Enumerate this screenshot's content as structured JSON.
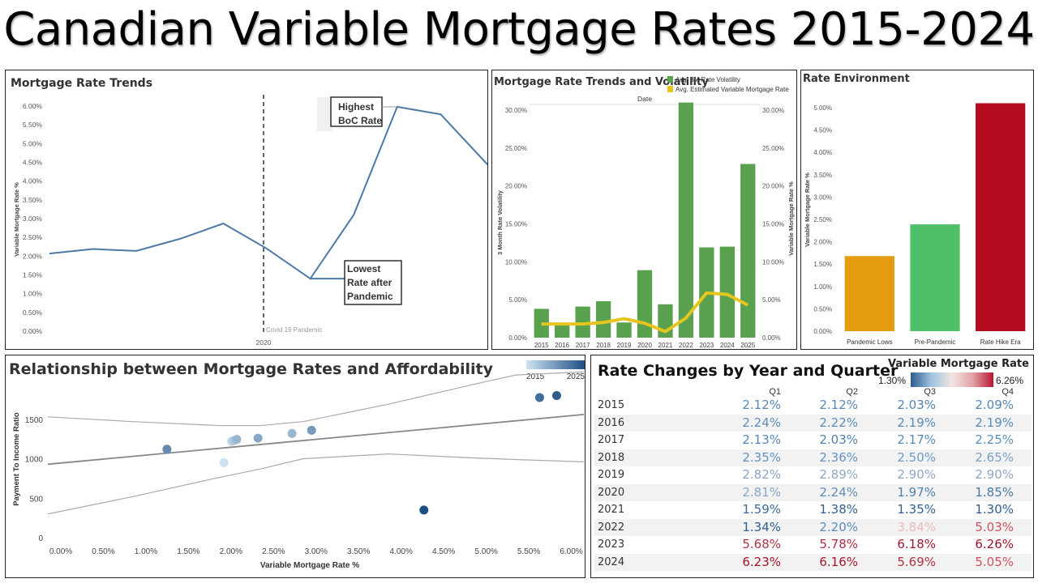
{
  "page_title": "Canadian Variable Mortgage Rates 2015-2024",
  "chart_data": [
    {
      "id": "trends",
      "type": "line",
      "title": "Mortgage Rate Trends",
      "ylabel": "Variable Mortgage Rate %",
      "xtick": "2020",
      "ylim": [
        0,
        6
      ],
      "yticks": [
        "0.00%",
        "0.50%",
        "1.00%",
        "1.50%",
        "2.00%",
        "2.50%",
        "3.00%",
        "3.50%",
        "4.00%",
        "4.50%",
        "5.00%",
        "5.50%",
        "6.00%"
      ],
      "y": [
        2.07,
        2.19,
        2.14,
        2.46,
        2.87,
        2.2,
        1.4,
        3.1,
        5.98,
        5.78,
        4.4
      ],
      "annotations": {
        "covid": "Covid 19 Pandemic",
        "highest": [
          "Highest",
          "BoC Rate"
        ],
        "lowest": [
          "Lowest",
          "Rate after",
          "Pandemic"
        ]
      },
      "line_color": "#4e79a7"
    },
    {
      "id": "volatility",
      "type": "bar",
      "title": "Mortgage Rate Trends and Volatility",
      "xlabel": "Date",
      "ylabel_left": "3 Month Rate Volatility",
      "ylabel_right": "Variable Mortgage Rate %",
      "ylim": [
        0,
        30
      ],
      "yticks": [
        "0.00%",
        "5.00%",
        "10.00%",
        "15.00%",
        "20.00%",
        "25.00%",
        "30.00%"
      ],
      "categories": [
        "2015",
        "2016",
        "2017",
        "2018",
        "2019",
        "2020",
        "2021",
        "2022",
        "2023",
        "2024",
        "2025"
      ],
      "series": [
        {
          "name": "Avg. 3M Rate Volatility",
          "color": "#59a14f",
          "values": [
            3.8,
            1.8,
            4.1,
            4.8,
            2.0,
            8.9,
            4.4,
            31.0,
            11.9,
            12.0,
            22.9
          ]
        },
        {
          "name": "Avg. Estimated Variable Mortgage Rate",
          "color": "#e6c51f",
          "values": [
            1.8,
            1.8,
            1.8,
            2.0,
            2.5,
            1.9,
            0.8,
            2.6,
            5.9,
            5.7,
            4.3
          ]
        }
      ]
    },
    {
      "id": "environment",
      "type": "bar",
      "title": "Rate Environment",
      "ylabel": "Variable Mortgage Rate %",
      "ylim": [
        0,
        5
      ],
      "yticks": [
        "0.00%",
        "0.50%",
        "1.00%",
        "1.50%",
        "2.00%",
        "2.50%",
        "3.00%",
        "3.50%",
        "4.00%",
        "4.50%",
        "5.00%"
      ],
      "categories": [
        "Pandemic Lows",
        "Pre-Pandemic",
        "Rate Hike Era"
      ],
      "values": [
        1.68,
        2.39,
        5.1
      ],
      "colors": [
        "#e49b0f",
        "#4fbf6a",
        "#b30b1f"
      ]
    },
    {
      "id": "affordability",
      "type": "scatter",
      "title": "Relationship between Mortgage Rates and Affordability",
      "xlabel": "Variable Mortgage Rate %",
      "ylabel": "Payment To Income Ratio",
      "legend_range": [
        "2015",
        "2025"
      ],
      "xlim": [
        0,
        6.3
      ],
      "ylim": [
        0,
        2000
      ],
      "xticks": [
        "0.00%",
        "0.50%",
        "1.00%",
        "1.50%",
        "2.00%",
        "2.50%",
        "3.00%",
        "3.50%",
        "4.00%",
        "4.50%",
        "5.00%",
        "5.50%",
        "6.00%"
      ],
      "yticks": [
        "0",
        "500",
        "1000",
        "1500"
      ],
      "points": [
        {
          "x": 2.07,
          "y": 950,
          "year": 2015
        },
        {
          "x": 2.16,
          "y": 1220,
          "year": 2016
        },
        {
          "x": 2.19,
          "y": 1230,
          "year": 2017
        },
        {
          "x": 2.22,
          "y": 1245,
          "year": 2018
        },
        {
          "x": 2.47,
          "y": 1260,
          "year": 2019
        },
        {
          "x": 2.87,
          "y": 1320,
          "year": 2018
        },
        {
          "x": 3.1,
          "y": 1360,
          "year": 2020
        },
        {
          "x": 1.4,
          "y": 1120,
          "year": 2021
        },
        {
          "x": 4.42,
          "y": 350,
          "year": 2025
        },
        {
          "x": 5.78,
          "y": 1775,
          "year": 2023
        },
        {
          "x": 5.98,
          "y": 1800,
          "year": 2024
        }
      ],
      "trend": {
        "intercept": 930,
        "slope": 100
      },
      "band": [
        {
          "x": 0.0,
          "upper": 1530,
          "lower": 300
        },
        {
          "x": 1.0,
          "upper": 1470,
          "lower": 520
        },
        {
          "x": 2.0,
          "upper": 1420,
          "lower": 760
        },
        {
          "x": 2.5,
          "upper": 1420,
          "lower": 870
        },
        {
          "x": 3.0,
          "upper": 1470,
          "lower": 1000
        },
        {
          "x": 4.0,
          "upper": 1690,
          "lower": 1060
        },
        {
          "x": 5.0,
          "upper": 1940,
          "lower": 1010
        },
        {
          "x": 5.5,
          "upper": 2060,
          "lower": 990
        },
        {
          "x": 6.3,
          "upper": 2100,
          "lower": 960
        }
      ]
    },
    {
      "id": "quarters",
      "type": "table",
      "title": "Rate Changes by Year and Quarter",
      "legend_title": "Variable Mortgage Rate",
      "legend_min": "1.30%",
      "legend_max": "6.26%",
      "quarters": [
        "Q1",
        "Q2",
        "Q3",
        "Q4"
      ],
      "rows": [
        {
          "year": "2015",
          "values": [
            "2.12%",
            "2.12%",
            "2.03%",
            "2.09%"
          ]
        },
        {
          "year": "2016",
          "values": [
            "2.24%",
            "2.22%",
            "2.19%",
            "2.19%"
          ]
        },
        {
          "year": "2017",
          "values": [
            "2.13%",
            "2.03%",
            "2.17%",
            "2.25%"
          ]
        },
        {
          "year": "2018",
          "values": [
            "2.35%",
            "2.36%",
            "2.50%",
            "2.65%"
          ]
        },
        {
          "year": "2019",
          "values": [
            "2.82%",
            "2.89%",
            "2.90%",
            "2.90%"
          ]
        },
        {
          "year": "2020",
          "values": [
            "2.81%",
            "2.24%",
            "1.97%",
            "1.85%"
          ]
        },
        {
          "year": "2021",
          "values": [
            "1.59%",
            "1.38%",
            "1.35%",
            "1.30%"
          ]
        },
        {
          "year": "2022",
          "values": [
            "1.34%",
            "2.20%",
            "3.84%",
            "5.03%"
          ]
        },
        {
          "year": "2023",
          "values": [
            "5.68%",
            "5.78%",
            "6.18%",
            "6.26%"
          ]
        },
        {
          "year": "2024",
          "values": [
            "6.23%",
            "6.16%",
            "5.69%",
            "5.05%"
          ]
        }
      ]
    }
  ]
}
